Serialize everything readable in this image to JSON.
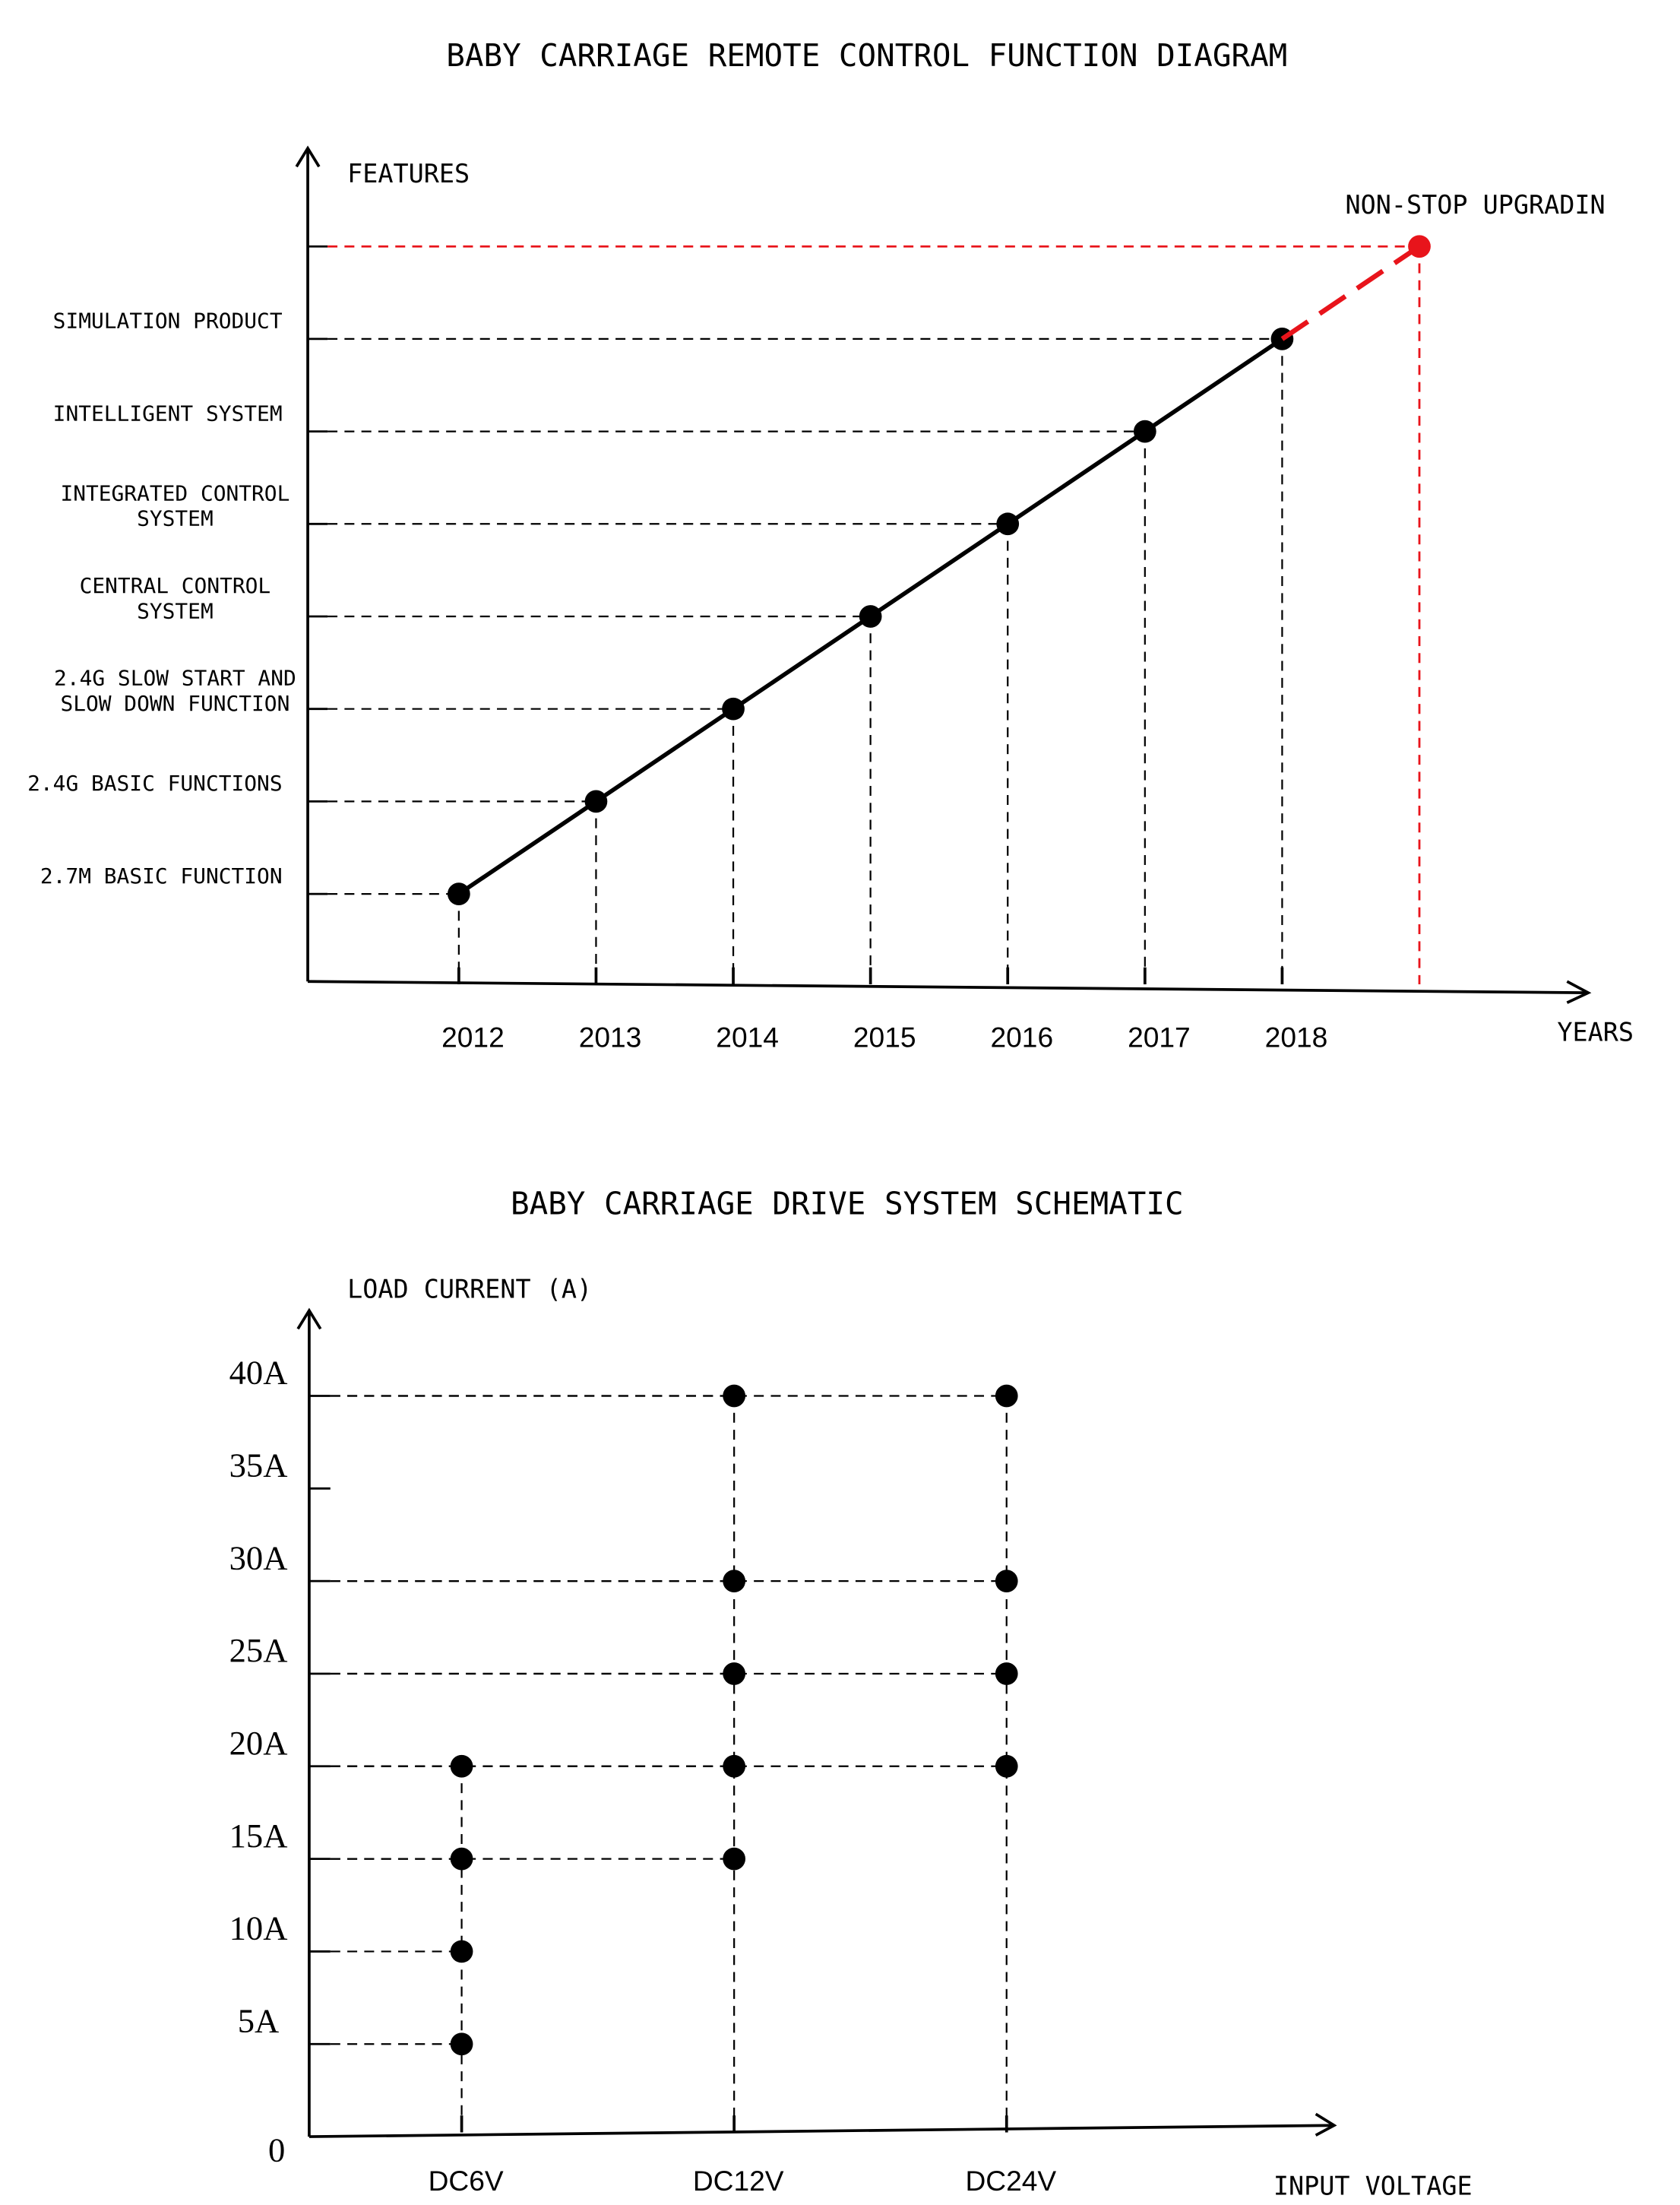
{
  "chart_data": [
    {
      "type": "timeline",
      "title": "BABY CARRIAGE REMOTE CONTROL FUNCTION DIAGRAM",
      "y_label": "FEATURES",
      "x_label": "YEARS",
      "categories": [
        "2012",
        "2013",
        "2014",
        "2015",
        "2016",
        "2017",
        "2018"
      ],
      "y_categories": [
        "2.7M BASIC FUNCTION",
        "2.4G BASIC FUNCTIONS",
        "2.4G SLOW START AND\nSLOW DOWN FUNCTION",
        "CENTRAL CONTROL\nSYSTEM",
        "INTEGRATED CONTROL\nSYSTEM",
        "INTELLIGENT SYSTEM",
        "SIMULATION PRODUCT"
      ],
      "color": "#000000",
      "projection": {
        "label": "NON-STOP UPGRADIN",
        "color": "#e8141b"
      }
    },
    {
      "type": "dot-matrix",
      "title": "BABY CARRIAGE DRIVE SYSTEM SCHEMATIC",
      "y_label": "LOAD CURRENT (A)",
      "x_label": "INPUT VOLTAGE",
      "categories": [
        "DC6V",
        "DC12V",
        "DC24V"
      ],
      "values": [
        [
          5,
          10,
          15,
          20
        ],
        [
          15,
          20,
          25,
          30,
          40
        ],
        [
          20,
          25,
          30,
          40
        ]
      ],
      "color": "#000000",
      "ylim": [
        0,
        44
      ],
      "yticks": [
        0,
        {
          "value": 5,
          "label": "5A"
        },
        {
          "value": 10,
          "label": "10A"
        },
        {
          "value": 15,
          "label": "15A"
        },
        {
          "value": 20,
          "label": "20A"
        },
        {
          "value": 25,
          "label": "25A"
        },
        {
          "value": 30,
          "label": "30A"
        },
        {
          "value": 35,
          "label": "35A"
        },
        {
          "value": 40,
          "label": "40A"
        }
      ]
    }
  ]
}
